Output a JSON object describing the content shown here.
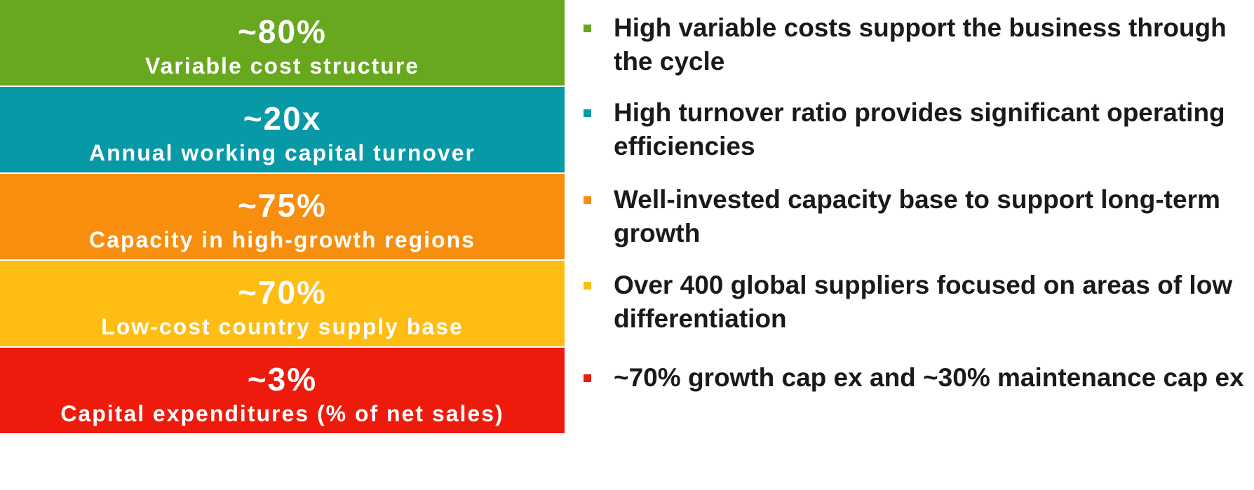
{
  "boxes": [
    {
      "metric": "~80%",
      "label": "Variable cost structure",
      "color": "#67a81e"
    },
    {
      "metric": "~20x",
      "label": "Annual working capital turnover",
      "color": "#0899a7"
    },
    {
      "metric": "~75%",
      "label": "Capacity in high-growth regions",
      "color": "#f78e0e"
    },
    {
      "metric": "~70%",
      "label": "Low-cost country supply base",
      "color": "#fdbd12"
    },
    {
      "metric": "~3%",
      "label": "Capital expenditures (% of net sales)",
      "color": "#ee1b0c"
    }
  ],
  "bullets": [
    {
      "text": "High variable costs support the business through the cycle",
      "color": "#67a81e"
    },
    {
      "text": "High turnover ratio provides significant operating efficiencies",
      "color": "#0899a7"
    },
    {
      "text": "Well-invested capacity base to support long-term growth",
      "color": "#f78e0e"
    },
    {
      "text": "Over 400 global suppliers focused on areas of low differentiation",
      "color": "#fdbd12"
    },
    {
      "text": "~70% growth cap ex and ~30% maintenance cap ex",
      "color": "#ee1b0c"
    }
  ]
}
